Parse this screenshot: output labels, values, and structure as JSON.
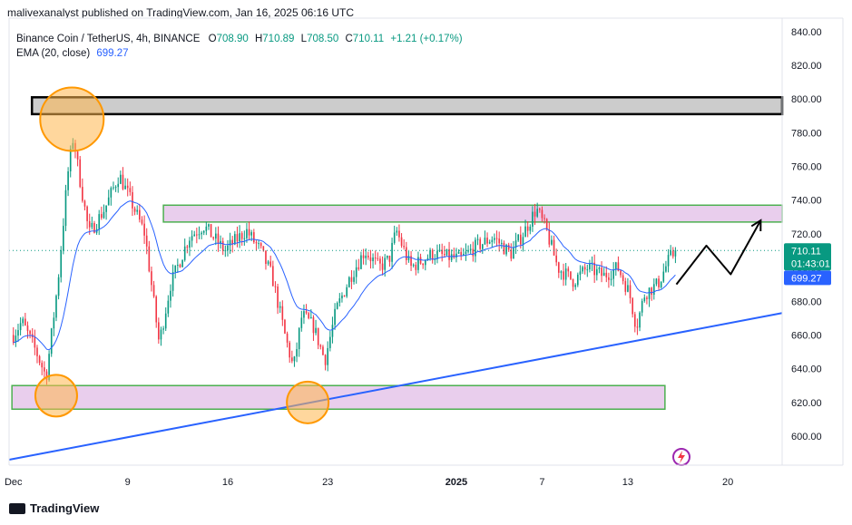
{
  "publisher": "malivexanalyst published on TradingView.com, Jan 16, 2025 06:16 UTC",
  "legend": {
    "symbol": "Binance Coin / TetherUS, 4h, BINANCE",
    "o_label": "O",
    "o": "708.90",
    "h_label": "H",
    "h": "710.89",
    "l_label": "L",
    "l": "708.50",
    "c_label": "C",
    "c": "710.11",
    "change": "+1.21 (+0.17%)",
    "ema_label": "EMA (20, close)",
    "ema_value": "699.27"
  },
  "footer": {
    "brand": "TradingView"
  },
  "price_tags": {
    "last": "710.11",
    "countdown": "01:43:01",
    "ema": "699.27"
  },
  "colors": {
    "up": "#089981",
    "down": "#f23645",
    "ema": "#2962ff",
    "trendline": "#2962ff",
    "zone_fill": "#e1bee7",
    "zone_border": "#4caf50",
    "circle": "#ff9800",
    "resistance_fill": "#cccccc"
  },
  "chart_data": {
    "type": "candlestick",
    "symbol": "Binance Coin / TetherUS",
    "timeframe": "4h",
    "ylim": [
      585,
      845
    ],
    "y_ticks": [
      "840.00",
      "820.00",
      "800.00",
      "780.00",
      "760.00",
      "740.00",
      "720.00",
      "700.00",
      "680.00",
      "660.00",
      "640.00",
      "620.00",
      "600.00"
    ],
    "x_ticks": [
      "Dec",
      "9",
      "16",
      "23",
      "2025",
      "7",
      "13",
      "20"
    ],
    "x_tick_days": [
      1,
      9,
      16,
      23,
      32,
      38,
      44,
      51
    ],
    "xlim_days": [
      0.7,
      54.8
    ],
    "candles_per_day": 6,
    "key_points": [
      {
        "day": 1.0,
        "price": 660
      },
      {
        "day": 1.6,
        "price": 668
      },
      {
        "day": 2.6,
        "price": 650
      },
      {
        "day": 3.3,
        "price": 635
      },
      {
        "day": 4.1,
        "price": 690
      },
      {
        "day": 4.8,
        "price": 755
      },
      {
        "day": 5.2,
        "price": 778
      },
      {
        "day": 5.6,
        "price": 755
      },
      {
        "day": 6.3,
        "price": 720
      },
      {
        "day": 7.4,
        "price": 735
      },
      {
        "day": 8.4,
        "price": 755
      },
      {
        "day": 9.2,
        "price": 740
      },
      {
        "day": 10.2,
        "price": 720
      },
      {
        "day": 11.2,
        "price": 655
      },
      {
        "day": 12.0,
        "price": 690
      },
      {
        "day": 13.3,
        "price": 718
      },
      {
        "day": 14.3,
        "price": 725
      },
      {
        "day": 15.8,
        "price": 710
      },
      {
        "day": 17.3,
        "price": 722
      },
      {
        "day": 18.3,
        "price": 710
      },
      {
        "day": 19.1,
        "price": 695
      },
      {
        "day": 20.0,
        "price": 660
      },
      {
        "day": 20.6,
        "price": 640
      },
      {
        "day": 21.2,
        "price": 672
      },
      {
        "day": 22.0,
        "price": 665
      },
      {
        "day": 22.8,
        "price": 645
      },
      {
        "day": 23.6,
        "price": 675
      },
      {
        "day": 24.6,
        "price": 695
      },
      {
        "day": 25.6,
        "price": 710
      },
      {
        "day": 26.6,
        "price": 700
      },
      {
        "day": 27.3,
        "price": 705
      },
      {
        "day": 27.8,
        "price": 722
      },
      {
        "day": 28.8,
        "price": 700
      },
      {
        "day": 30.3,
        "price": 708
      },
      {
        "day": 32.3,
        "price": 705
      },
      {
        "day": 33.3,
        "price": 712
      },
      {
        "day": 34.6,
        "price": 718
      },
      {
        "day": 35.8,
        "price": 708
      },
      {
        "day": 36.8,
        "price": 722
      },
      {
        "day": 37.6,
        "price": 735
      },
      {
        "day": 38.3,
        "price": 722
      },
      {
        "day": 39.1,
        "price": 700
      },
      {
        "day": 40.2,
        "price": 692
      },
      {
        "day": 41.2,
        "price": 700
      },
      {
        "day": 42.3,
        "price": 695
      },
      {
        "day": 43.3,
        "price": 700
      },
      {
        "day": 44.1,
        "price": 685
      },
      {
        "day": 44.6,
        "price": 665
      },
      {
        "day": 45.2,
        "price": 685
      },
      {
        "day": 46.1,
        "price": 690
      },
      {
        "day": 46.9,
        "price": 705
      },
      {
        "day": 47.4,
        "price": 710
      }
    ],
    "resistance_box": {
      "x0_day": 2.3,
      "x1_day": 54.8,
      "y_low": 791,
      "y_high": 801
    },
    "supply_zone": {
      "x0_day": 11.5,
      "x1_day": 54.8,
      "y_low": 727,
      "y_high": 737
    },
    "demand_zone": {
      "x0_day": 0.9,
      "x1_day": 46.6,
      "y_low": 616,
      "y_high": 630
    },
    "trendline": {
      "p1": {
        "day": 0.7,
        "price": 586
      },
      "p2": {
        "day": 54.8,
        "price": 673
      }
    },
    "highlight_circles": [
      {
        "day": 5.1,
        "price": 788
      },
      {
        "day": 4.0,
        "price": 624
      },
      {
        "day": 21.6,
        "price": 620
      }
    ],
    "projection_path": [
      {
        "day": 47.4,
        "price": 690
      },
      {
        "day": 49.5,
        "price": 713
      },
      {
        "day": 51.2,
        "price": 696
      },
      {
        "day": 53.3,
        "price": 728
      }
    ],
    "last_price": 710.11,
    "ema_last": 699.27
  }
}
